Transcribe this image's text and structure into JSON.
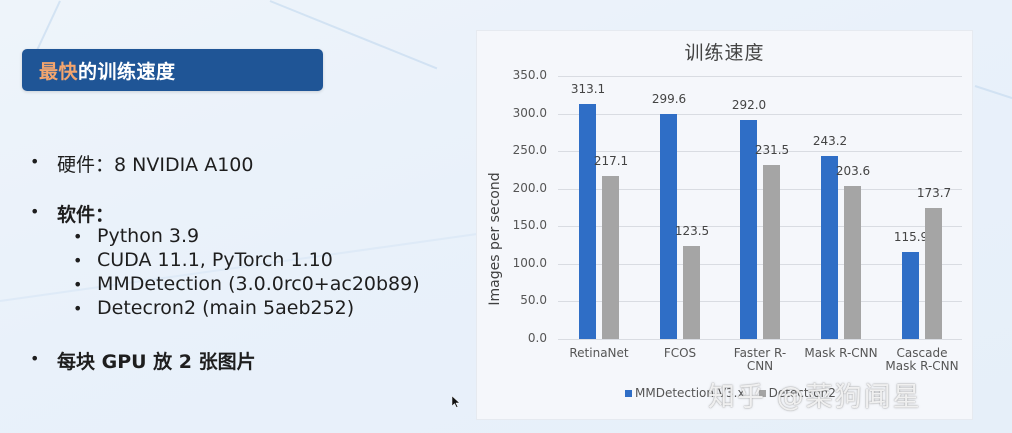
{
  "slide": {
    "title_accent": "最快",
    "title_rest": "的训练速度",
    "bullets": [
      {
        "level": 1,
        "text": "硬件：8 NVIDIA A100",
        "bold": false
      },
      {
        "level": 1,
        "text": "软件：",
        "bold": true
      },
      {
        "level": 2,
        "text": "Python 3.9"
      },
      {
        "level": 2,
        "text": "CUDA 11.1, PyTorch 1.10"
      },
      {
        "level": 2,
        "text": "MMDetection (3.0.0rc0+ac20b89)"
      },
      {
        "level": 2,
        "text": "Detecron2 (main 5aeb252)"
      },
      {
        "level": 1,
        "text": "每块 GPU 放 2 张图片",
        "bold": true
      }
    ],
    "bullet_glyph": "•"
  },
  "colors": {
    "banner_bg": "#1f5596",
    "banner_accent_text": "#f3a56e",
    "mmdetection_bar": "#2f6ec6",
    "detectron2_bar": "#a5a5a5"
  },
  "chart_data": {
    "type": "bar",
    "title": "训练速度",
    "xlabel": "",
    "ylabel": "Images per second",
    "ylim": [
      0,
      350
    ],
    "yticks": [
      "0.0",
      "50.0",
      "100.0",
      "150.0",
      "200.0",
      "250.0",
      "300.0",
      "350.0"
    ],
    "grid": true,
    "legend_position": "bottom",
    "categories": [
      "RetinaNet",
      "FCOS",
      "Faster R-CNN",
      "Mask R-CNN",
      "Cascade Mask R-CNN"
    ],
    "category_labels_wrapped": [
      [
        "RetinaNet"
      ],
      [
        "FCOS"
      ],
      [
        "Faster R-",
        "CNN"
      ],
      [
        "Mask R-CNN"
      ],
      [
        "Cascade",
        "Mask R-CNN"
      ]
    ],
    "series": [
      {
        "name": "MMDetection V3.x",
        "values": [
          313.1,
          299.6,
          292.0,
          243.2,
          115.9
        ],
        "labels": [
          "313.1",
          "299.6",
          "292.0",
          "243.2",
          "115.9"
        ]
      },
      {
        "name": "Detectron2",
        "values": [
          217.1,
          123.5,
          231.5,
          203.6,
          173.7
        ],
        "labels": [
          "217.1",
          "123.5",
          "231.5",
          "203.6",
          "173.7"
        ]
      }
    ]
  },
  "watermark": "知乎 @菜狗闻星"
}
